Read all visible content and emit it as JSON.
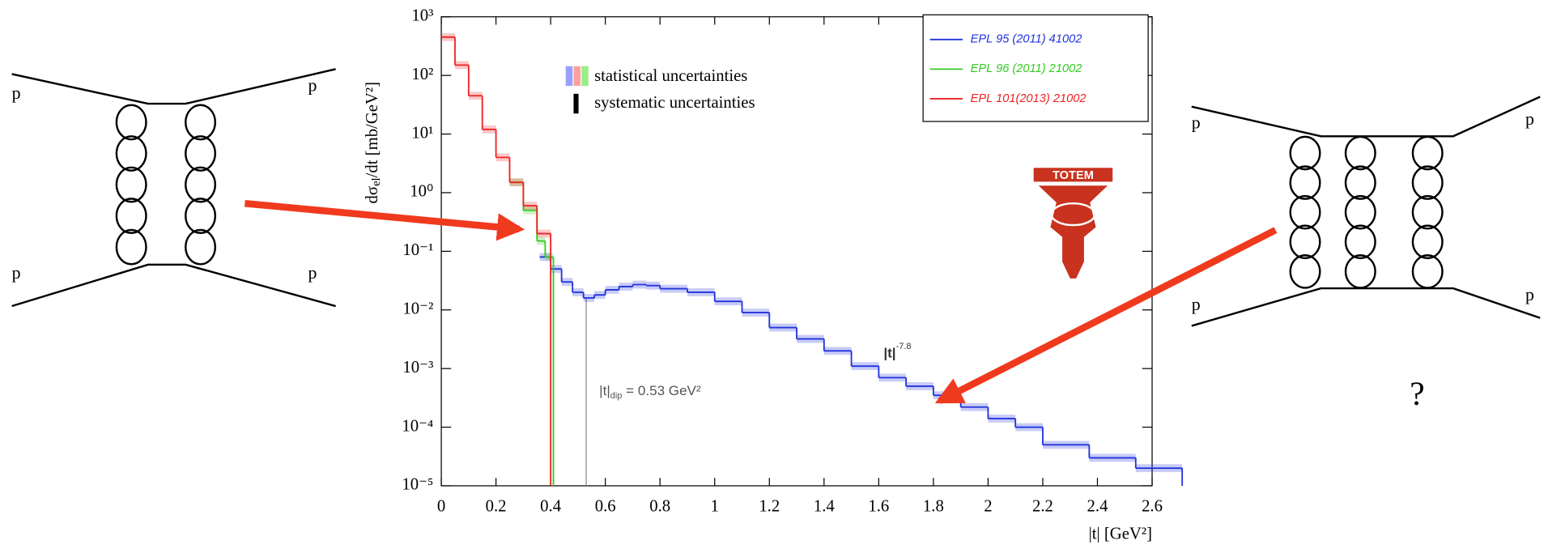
{
  "chart_data": {
    "type": "line",
    "x_label": "|t|   [GeV²]",
    "y_label": {
      "main": "dσ",
      "sub": "el",
      "rest": "/dt   [mb/GeV²]"
    },
    "log_y": true,
    "xlim": [
      0,
      2.6
    ],
    "xticks": [
      0,
      0.2,
      0.4,
      0.6,
      0.8,
      1,
      1.2,
      1.4,
      1.6,
      1.8,
      2,
      2.2,
      2.4,
      2.6
    ],
    "ylim": [
      1e-05,
      1000
    ],
    "yticks": [
      {
        "value": 1e-05,
        "label": "10⁻⁵"
      },
      {
        "value": 0.0001,
        "label": "10⁻⁴"
      },
      {
        "value": 0.001,
        "label": "10⁻³"
      },
      {
        "value": 0.01,
        "label": "10⁻²"
      },
      {
        "value": 0.1,
        "label": "10⁻¹"
      },
      {
        "value": 1,
        "label": "10⁰"
      },
      {
        "value": 10,
        "label": "10¹"
      },
      {
        "value": 100,
        "label": "10²"
      },
      {
        "value": 1000,
        "label": "10³"
      }
    ],
    "legend": "upper right",
    "series": [
      {
        "name": "EPL 95 (2011) 41002",
        "color": "#2233dd",
        "x": [
          0.36,
          0.4,
          0.44,
          0.48,
          0.52,
          0.56,
          0.6,
          0.65,
          0.7,
          0.75,
          0.8,
          0.9,
          1.0,
          1.1,
          1.2,
          1.3,
          1.4,
          1.5,
          1.6,
          1.7,
          1.8,
          1.9,
          2.0,
          2.1,
          2.2,
          2.37,
          2.54
        ],
        "values": [
          0.08,
          0.05,
          0.03,
          0.02,
          0.016,
          0.018,
          0.022,
          0.025,
          0.027,
          0.026,
          0.023,
          0.02,
          0.014,
          0.009,
          0.005,
          0.0032,
          0.002,
          0.0011,
          0.0007,
          0.0005,
          0.00035,
          0.00022,
          0.00014,
          0.0001,
          5e-05,
          3e-05,
          2e-05
        ]
      },
      {
        "name": "EPL 96 (2011) 21002",
        "color": "#33cc22",
        "x": [
          0.25,
          0.3,
          0.35,
          0.38
        ],
        "values": [
          1.5,
          0.5,
          0.15,
          0.08
        ]
      },
      {
        "name": "EPL 101(2013) 21002",
        "color": "#ee2222",
        "x": [
          0,
          0.05,
          0.1,
          0.15,
          0.2,
          0.25,
          0.3,
          0.35
        ],
        "values": [
          450,
          150,
          45,
          12,
          4,
          1.5,
          0.6,
          0.2
        ]
      }
    ],
    "uncertainty_legend": [
      "statistical uncertainties",
      "systematic uncertainties"
    ],
    "dip_line": 0.53,
    "dip_annotation": {
      "main": "|t|",
      "sub": "dip",
      "rest": " = 0.53 GeV²"
    },
    "slope_annotation": {
      "main": "|t|",
      "sup": "-7.8"
    },
    "logo": "TOTEM"
  },
  "diagrams": {
    "left": {
      "labels": [
        "p",
        "p",
        "p",
        "p"
      ]
    },
    "right": {
      "labels": [
        "p",
        "p",
        "p",
        "p"
      ],
      "note": "?"
    }
  }
}
